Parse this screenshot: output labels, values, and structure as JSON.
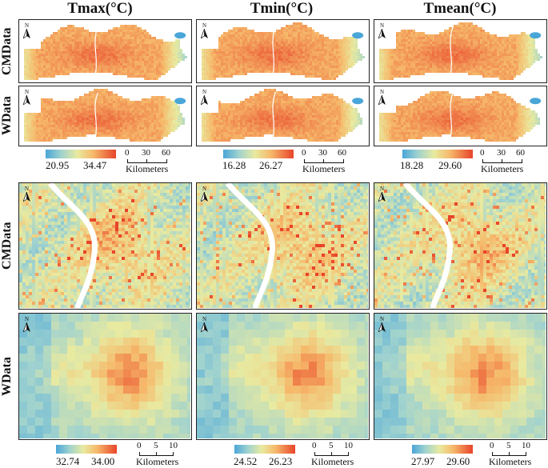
{
  "columns": [
    {
      "title": "Tmax(°C)"
    },
    {
      "title": "Tmin(°C)"
    },
    {
      "title": "Tmean(°C)"
    }
  ],
  "rows": [
    {
      "label": "CMData"
    },
    {
      "label": "WData"
    },
    {
      "label": "CMData"
    },
    {
      "label": "WData"
    }
  ],
  "north_label": "N",
  "legends_top": [
    {
      "min": "20.95",
      "max": "34.47"
    },
    {
      "min": "16.28",
      "max": "26.27"
    },
    {
      "min": "18.28",
      "max": "29.60"
    }
  ],
  "legends_bottom": [
    {
      "min": "32.74",
      "max": "34.00"
    },
    {
      "min": "24.52",
      "max": "26.23"
    },
    {
      "min": "27.97",
      "max": "29.60"
    }
  ],
  "scale_top": {
    "ticks": [
      "0",
      "30",
      "60"
    ],
    "unit": "Kilometers"
  },
  "scale_bottom": {
    "ticks": [
      "0",
      "5",
      "10"
    ],
    "unit": "Kilometers"
  },
  "colors": {
    "cold": "#4aa6d8",
    "cool": "#9fd2cf",
    "mid": "#e8eaa0",
    "warm": "#f6b86a",
    "hot": "#e8442a",
    "water": "#ffffff"
  }
}
